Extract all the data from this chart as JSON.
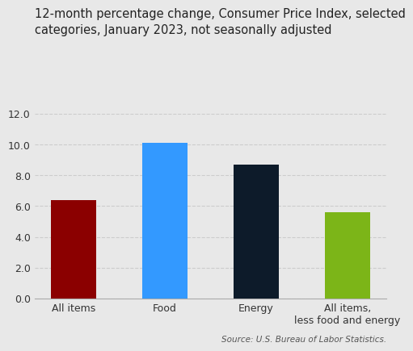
{
  "categories": [
    "All items",
    "Food",
    "Energy",
    "All items,\nless food and energy"
  ],
  "values": [
    6.4,
    10.1,
    8.7,
    5.6
  ],
  "bar_colors": [
    "#8B0000",
    "#3399FF",
    "#0D1B2A",
    "#7CB518"
  ],
  "title": "12-month percentage change, Consumer Price Index, selected\ncategories, January 2023, not seasonally adjusted",
  "ylim": [
    0,
    12.0
  ],
  "yticks": [
    0.0,
    2.0,
    4.0,
    6.0,
    8.0,
    10.0,
    12.0
  ],
  "source_text": "Source: U.S. Bureau of Labor Statistics.",
  "background_color": "#E8E8E8",
  "title_fontsize": 10.5,
  "tick_fontsize": 9,
  "source_fontsize": 7.5,
  "bar_width": 0.5
}
